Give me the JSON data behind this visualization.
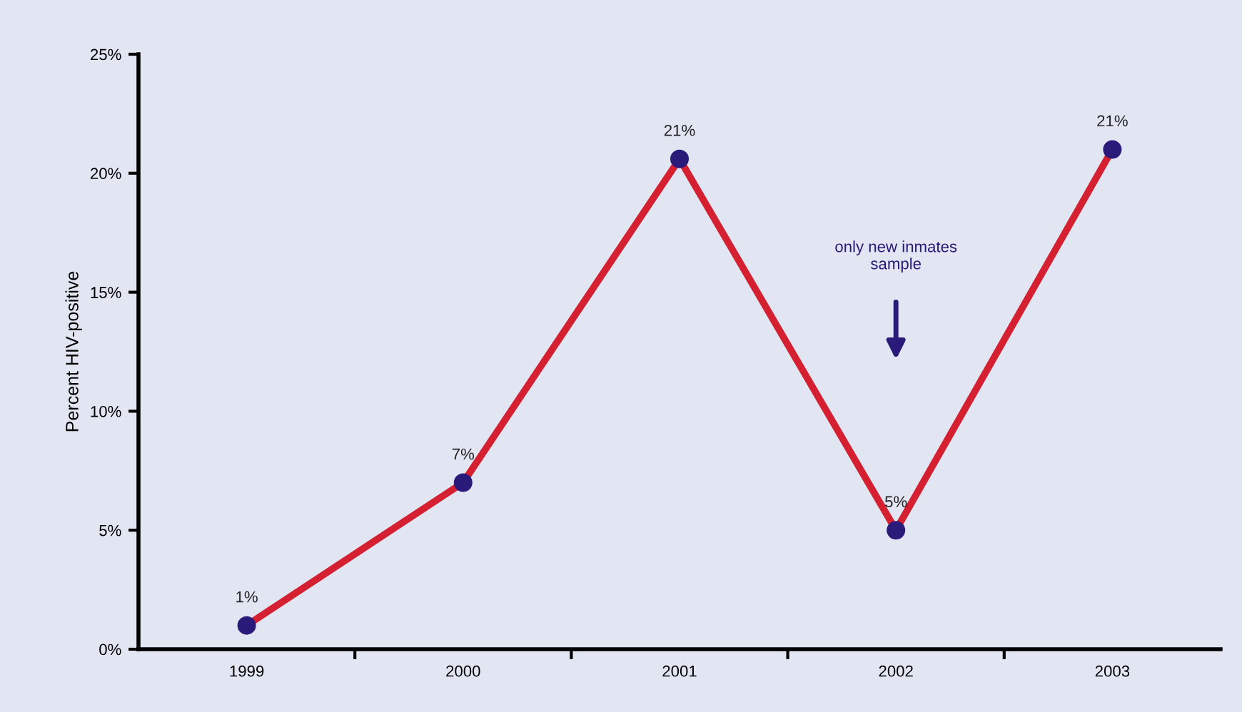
{
  "chart_data": {
    "type": "line",
    "ylabel": "Percent HIV-positive",
    "categories": [
      "1999",
      "2000",
      "2001",
      "2002",
      "2003"
    ],
    "series": [
      {
        "color": "#d42030",
        "colors": [
          "#2a1a7a",
          "#2a1a7a",
          "#2a1a7a",
          "#2a1a7a",
          "#2a1a7a"
        ],
        "values": [
          1,
          7,
          20.6,
          5,
          21
        ],
        "value_labels": [
          "1%",
          "7%",
          "21%",
          "5%",
          "21%"
        ]
      }
    ],
    "marker": "circle",
    "line_style": "solid",
    "ylim": [
      0,
      25
    ],
    "yticks": [
      {
        "value": 0,
        "label": "0%"
      },
      {
        "value": 5,
        "label": "5%"
      },
      {
        "value": 10,
        "label": "10%"
      },
      {
        "value": 15,
        "label": "15%"
      },
      {
        "value": 20,
        "label": "20%"
      },
      {
        "value": 25,
        "label": "25%"
      }
    ],
    "grid": false,
    "legend": false,
    "annotations": [
      "only new inmates\nsample"
    ]
  }
}
